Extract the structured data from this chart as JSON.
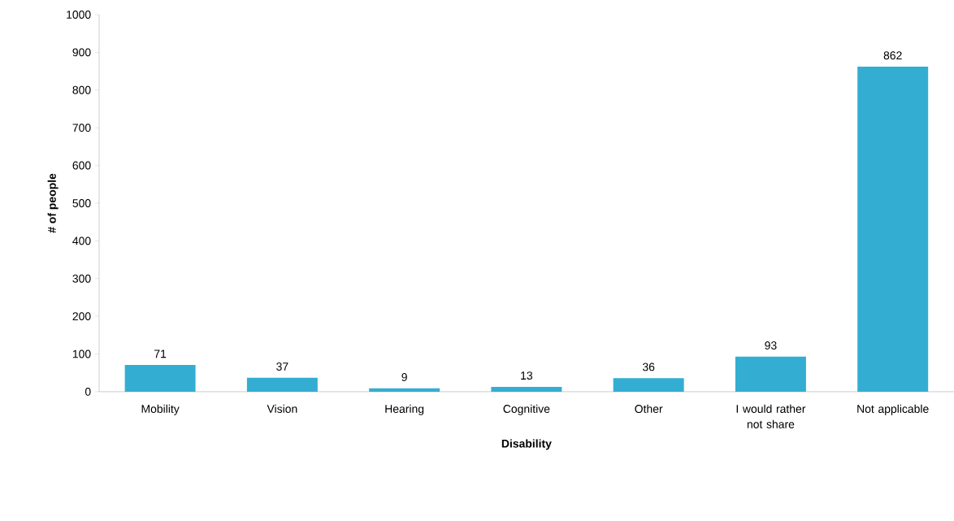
{
  "chart_data": {
    "type": "bar",
    "xlabel": "Disability",
    "ylabel": "# of people",
    "categories": [
      "Mobility",
      "Vision",
      "Hearing",
      "Cognitive",
      "Other",
      "I would rather not share",
      "Not applicable"
    ],
    "values": [
      71,
      37,
      9,
      13,
      36,
      93,
      862
    ],
    "color": "#33aed2",
    "ylim": [
      0,
      1000
    ],
    "yticks": [
      0,
      100,
      200,
      300,
      400,
      500,
      600,
      700,
      800,
      900,
      1000
    ],
    "data_labels": true,
    "grid": false
  }
}
